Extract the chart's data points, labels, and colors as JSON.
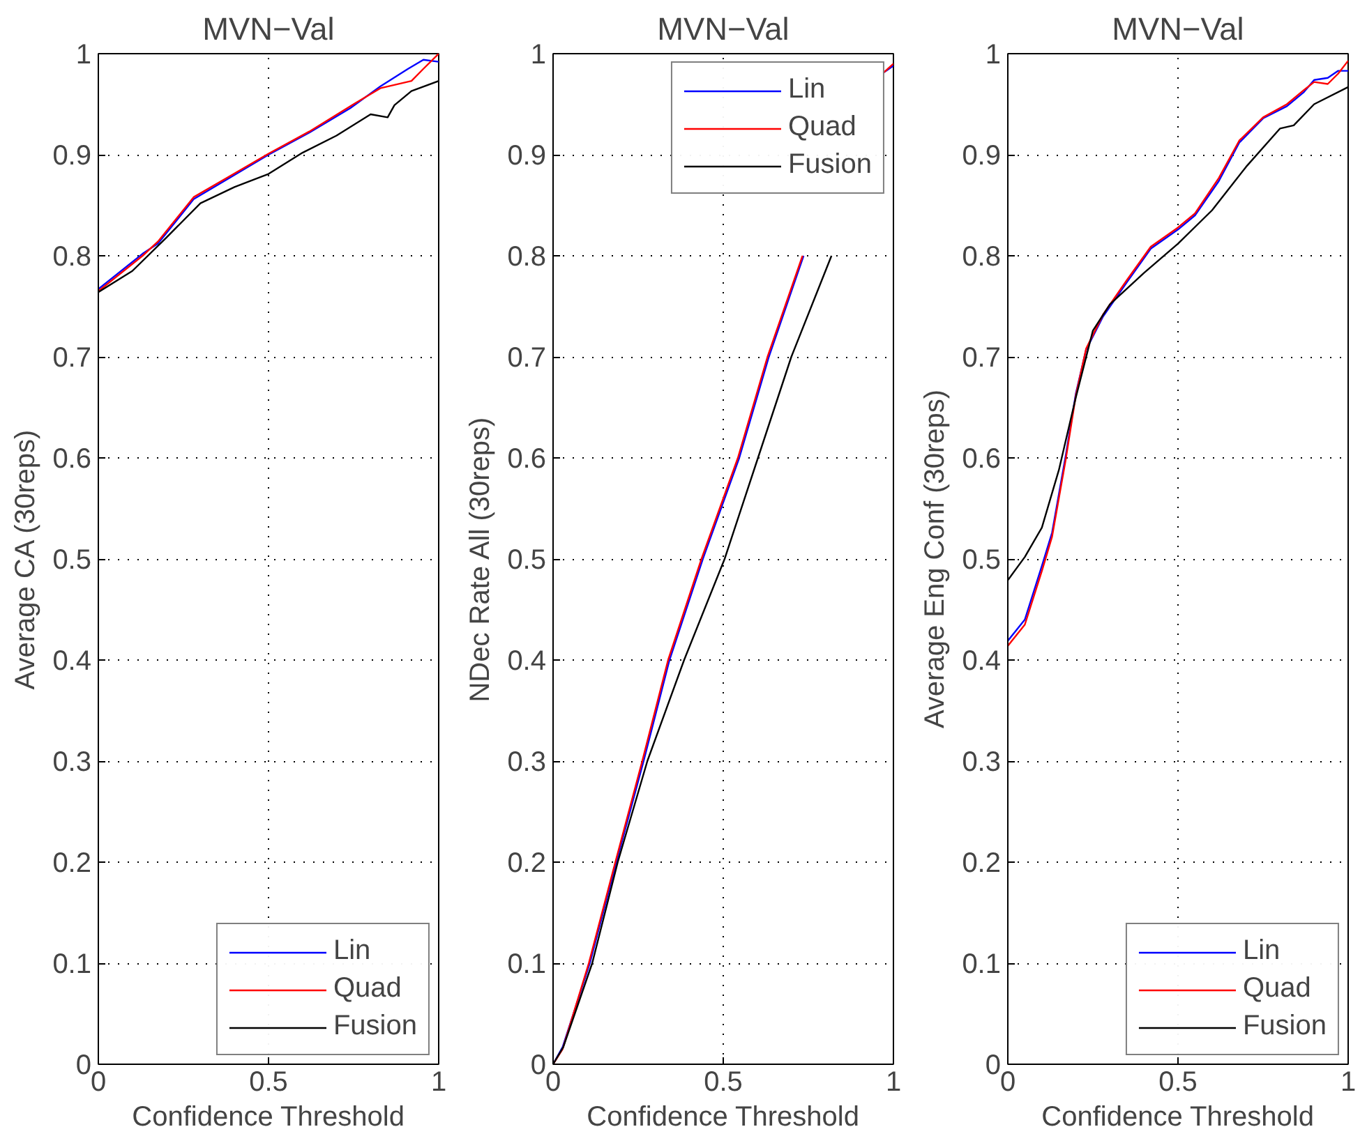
{
  "chart_data": [
    {
      "type": "line",
      "title": "MVN−Val",
      "xlabel": "Confidence Threshold",
      "ylabel": "Average CA (30reps)",
      "xlim": [
        0,
        1
      ],
      "ylim": [
        0,
        1
      ],
      "xticks": [
        0,
        0.5,
        1
      ],
      "yticks": [
        0,
        0.1,
        0.2,
        0.3,
        0.4,
        0.5,
        0.6,
        0.7,
        0.8,
        0.9,
        1
      ],
      "grid": true,
      "legend": "bottom right",
      "line_style": "solid",
      "series": [
        {
          "name": "Lin",
          "color": "#0000ff",
          "x": [
            0,
            0.13,
            0.175,
            0.28,
            0.5,
            0.62,
            0.74,
            0.83,
            0.91,
            0.955,
            1
          ],
          "values": [
            0.767,
            0.802,
            0.812,
            0.856,
            0.9,
            0.922,
            0.946,
            0.968,
            0.985,
            0.994,
            0.992
          ]
        },
        {
          "name": "Quad",
          "color": "#ff0000",
          "x": [
            0,
            0.13,
            0.175,
            0.28,
            0.5,
            0.62,
            0.74,
            0.83,
            0.92,
            0.955,
            1
          ],
          "values": [
            0.765,
            0.8,
            0.814,
            0.858,
            0.901,
            0.923,
            0.948,
            0.966,
            0.973,
            0.985,
            1.0
          ]
        },
        {
          "name": "Fusion",
          "color": "#000000",
          "x": [
            0,
            0.1,
            0.2,
            0.3,
            0.4,
            0.5,
            0.6,
            0.7,
            0.8,
            0.85,
            0.87,
            0.92,
            1
          ],
          "values": [
            0.764,
            0.785,
            0.818,
            0.852,
            0.868,
            0.881,
            0.902,
            0.919,
            0.94,
            0.937,
            0.949,
            0.963,
            0.973
          ]
        }
      ]
    },
    {
      "type": "line",
      "title": "MVN−Val",
      "xlabel": "Confidence Threshold",
      "ylabel": "NDec Rate All (30reps)",
      "xlim": [
        0,
        1
      ],
      "ylim": [
        0,
        1
      ],
      "xticks": [
        0,
        0.5,
        1
      ],
      "yticks": [
        0,
        0.1,
        0.2,
        0.3,
        0.4,
        0.5,
        0.6,
        0.7,
        0.8,
        0.9,
        1
      ],
      "grid": true,
      "legend": "top right",
      "line_style": "solid",
      "series": [
        {
          "name": "Lin",
          "color": "#0000ff",
          "x": [
            0,
            0.028,
            0.108,
            0.186,
            0.266,
            0.342,
            0.44,
            0.547,
            0.634,
            0.736,
            0.85,
            0.97,
            1
          ],
          "values": [
            0,
            0.017,
            0.1,
            0.2,
            0.3,
            0.4,
            0.5,
            0.6,
            0.7,
            0.8,
            null,
            0.981,
            0.988
          ]
        },
        {
          "name": "Quad",
          "color": "#ff0000",
          "x": [
            0,
            0.028,
            0.105,
            0.183,
            0.262,
            0.338,
            0.436,
            0.543,
            0.63,
            0.733,
            0.85,
            0.97,
            1
          ],
          "values": [
            0,
            0.015,
            0.1,
            0.2,
            0.3,
            0.4,
            0.5,
            0.6,
            0.7,
            0.8,
            null,
            0.981,
            0.99
          ]
        },
        {
          "name": "Fusion",
          "color": "#000000",
          "x": [
            0,
            0.03,
            0.115,
            0.19,
            0.277,
            0.385,
            0.504,
            0.602,
            0.7,
            0.818
          ],
          "values": [
            0,
            0.017,
            0.1,
            0.2,
            0.3,
            0.4,
            0.5,
            0.6,
            0.7,
            0.8
          ]
        }
      ]
    },
    {
      "type": "line",
      "title": "MVN−Val",
      "xlabel": "Confidence Threshold",
      "ylabel": "Average Eng Conf (30reps)",
      "xlim": [
        0,
        1
      ],
      "ylim": [
        0,
        1
      ],
      "xticks": [
        0,
        0.5,
        1
      ],
      "yticks": [
        0,
        0.1,
        0.2,
        0.3,
        0.4,
        0.5,
        0.6,
        0.7,
        0.8,
        0.9,
        1
      ],
      "grid": true,
      "legend": "bottom right",
      "line_style": "solid",
      "series": [
        {
          "name": "Lin",
          "color": "#0000ff",
          "x": [
            0,
            0.05,
            0.1,
            0.13,
            0.17,
            0.2,
            0.23,
            0.28,
            0.35,
            0.42,
            0.5,
            0.55,
            0.62,
            0.68,
            0.75,
            0.82,
            0.87,
            0.9,
            0.94,
            0.97,
            1
          ],
          "values": [
            0.419,
            0.44,
            0.493,
            0.526,
            0.602,
            0.664,
            0.707,
            0.74,
            0.774,
            0.807,
            0.826,
            0.84,
            0.874,
            0.912,
            0.936,
            0.948,
            0.962,
            0.974,
            0.976,
            0.983,
            0.983
          ]
        },
        {
          "name": "Quad",
          "color": "#ff0000",
          "x": [
            0,
            0.05,
            0.1,
            0.13,
            0.17,
            0.2,
            0.23,
            0.28,
            0.35,
            0.42,
            0.5,
            0.55,
            0.62,
            0.68,
            0.75,
            0.82,
            0.87,
            0.9,
            0.94,
            0.97,
            1
          ],
          "values": [
            0.414,
            0.435,
            0.488,
            0.522,
            0.598,
            0.662,
            0.708,
            0.742,
            0.776,
            0.809,
            0.828,
            0.842,
            0.877,
            0.914,
            0.937,
            0.95,
            0.964,
            0.972,
            0.97,
            0.98,
            0.993
          ]
        },
        {
          "name": "Fusion",
          "color": "#000000",
          "x": [
            0,
            0.05,
            0.1,
            0.15,
            0.2,
            0.25,
            0.3,
            0.4,
            0.5,
            0.6,
            0.7,
            0.8,
            0.84,
            0.9,
            1
          ],
          "values": [
            0.479,
            0.502,
            0.531,
            0.588,
            0.66,
            0.726,
            0.752,
            0.783,
            0.812,
            0.845,
            0.888,
            0.926,
            0.929,
            0.95,
            0.967
          ]
        }
      ]
    }
  ]
}
